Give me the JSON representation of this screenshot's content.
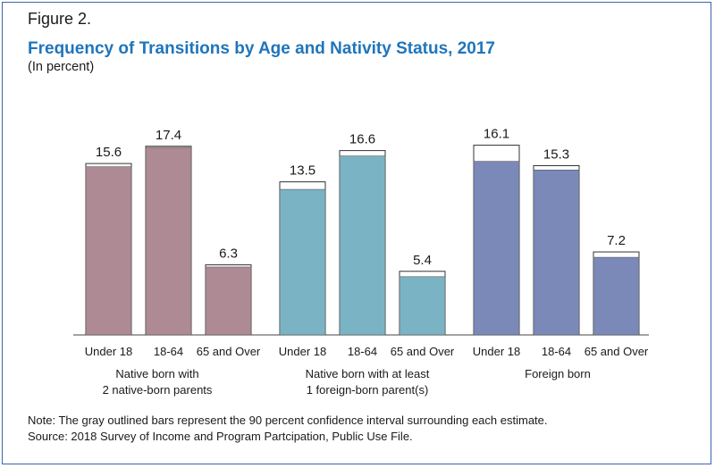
{
  "figure_label": "Figure 2.",
  "title": "Frequency of Transitions by Age and Nativity Status, 2017",
  "subtitle": "(In percent)",
  "note": "Note: The gray outlined bars represent the 90 percent confidence interval surrounding each estimate.",
  "source": "Source: 2018 Survey of Income and Program Partcipation, Public Use File.",
  "colors": {
    "native_born_parents": "#ad8a94",
    "native_foreign_parent": "#7ab3c4",
    "foreign_born": "#7a89b8",
    "border": "#3a66a8",
    "title": "#1f75bb"
  },
  "chart_data": {
    "type": "bar",
    "title": "Frequency of Transitions by Age and Nativity Status, 2017",
    "xlabel": "",
    "ylabel": "",
    "ylim": [
      0,
      20
    ],
    "groups": [
      {
        "label": "Native born with 2 native-born parents",
        "label_lines": [
          "Native born with",
          "2 native-born parents"
        ],
        "color_key": "native_born_parents",
        "bars": [
          {
            "category": "Under 18",
            "value": 15.6,
            "ci_upper": 15.9
          },
          {
            "category": "18-64",
            "value": 17.4,
            "ci_upper": 17.5
          },
          {
            "category": "65 and Over",
            "value": 6.3,
            "ci_upper": 6.5
          }
        ]
      },
      {
        "label": "Native born with at least 1 foreign-born parent(s)",
        "label_lines": [
          "Native born with at least",
          "1 foreign-born parent(s)"
        ],
        "color_key": "native_foreign_parent",
        "bars": [
          {
            "category": "Under 18",
            "value": 13.5,
            "ci_upper": 14.2
          },
          {
            "category": "18-64",
            "value": 16.6,
            "ci_upper": 17.1
          },
          {
            "category": "65 and Over",
            "value": 5.4,
            "ci_upper": 5.9
          }
        ]
      },
      {
        "label": "Foreign born",
        "label_lines": [
          "Foreign born"
        ],
        "color_key": "foreign_born",
        "bars": [
          {
            "category": "Under 18",
            "value": 16.1,
            "ci_upper": 17.6
          },
          {
            "category": "18-64",
            "value": 15.3,
            "ci_upper": 15.7
          },
          {
            "category": "65 and Over",
            "value": 7.2,
            "ci_upper": 7.7
          }
        ]
      }
    ]
  }
}
